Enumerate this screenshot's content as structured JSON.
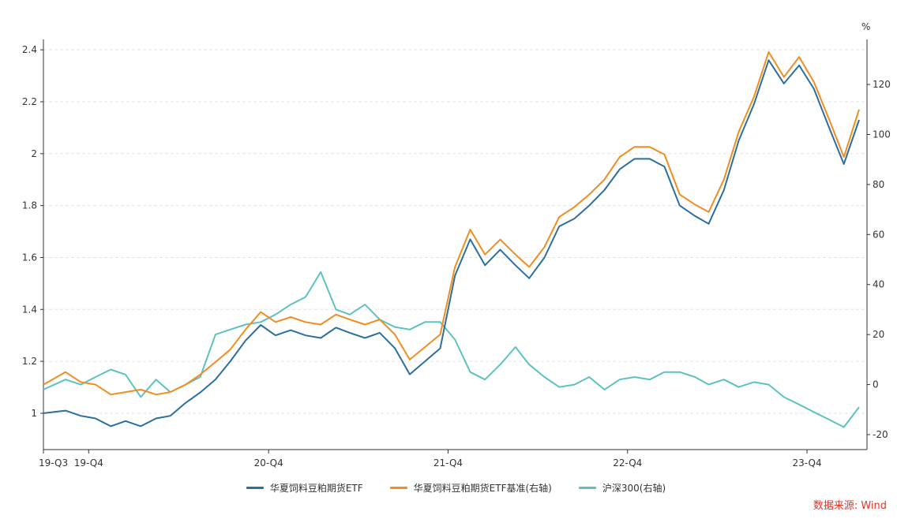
{
  "chart_data": {
    "type": "line",
    "x_ticks": [
      "19-Q3",
      "19-Q4",
      "20-Q4",
      "21-Q4",
      "22-Q4",
      "23-Q4"
    ],
    "y_left": {
      "ticks": [
        "1",
        "1.2",
        "1.4",
        "1.6",
        "1.8",
        "2",
        "2.2",
        "2.4"
      ],
      "range": [
        0.86,
        2.44
      ]
    },
    "y_right": {
      "unit": "%",
      "ticks": [
        "-20",
        "0",
        "20",
        "40",
        "60",
        "80",
        "100",
        "120"
      ],
      "range": [
        -26,
        138
      ]
    },
    "grid": "horizontal-dashed",
    "legend_position": "bottom-center",
    "series": [
      {
        "name": "华夏饲料豆粕期货ETF",
        "axis": "left",
        "color": "#2c6e9e",
        "x": [
          "2019-07",
          "2019-08",
          "2019-09",
          "2019-10",
          "2019-11",
          "2019-12",
          "2020-01",
          "2020-02",
          "2020-03",
          "2020-04",
          "2020-05",
          "2020-06",
          "2020-07",
          "2020-08",
          "2020-09",
          "2020-10",
          "2020-11",
          "2020-12",
          "2021-01",
          "2021-02",
          "2021-03",
          "2021-04",
          "2021-05",
          "2021-06",
          "2021-07",
          "2021-08",
          "2021-09",
          "2021-10",
          "2021-11",
          "2021-12",
          "2022-01",
          "2022-02",
          "2022-03",
          "2022-04",
          "2022-05",
          "2022-06",
          "2022-07",
          "2022-08",
          "2022-09",
          "2022-10",
          "2022-11",
          "2022-12",
          "2023-01",
          "2023-02",
          "2023-03",
          "2023-04",
          "2023-05",
          "2023-06",
          "2023-07",
          "2023-08",
          "2023-09",
          "2023-10",
          "2023-11",
          "2023-12",
          "2024-01"
        ],
        "values": [
          1.0,
          1.01,
          0.99,
          0.98,
          0.95,
          0.97,
          0.95,
          0.98,
          0.99,
          1.04,
          1.08,
          1.13,
          1.2,
          1.28,
          1.34,
          1.3,
          1.32,
          1.3,
          1.29,
          1.33,
          1.31,
          1.29,
          1.31,
          1.25,
          1.15,
          1.2,
          1.25,
          1.53,
          1.67,
          1.57,
          1.63,
          1.57,
          1.52,
          1.6,
          1.72,
          1.75,
          1.8,
          1.86,
          1.94,
          1.98,
          1.98,
          1.95,
          1.8,
          1.76,
          1.73,
          1.86,
          2.05,
          2.19,
          2.36,
          2.27,
          2.34,
          2.25,
          2.1,
          1.96,
          2.13
        ]
      },
      {
        "name": "华夏饲料豆粕期货ETF基准(右轴)",
        "axis": "right",
        "color": "#f28c1f",
        "x": [
          "2019-07",
          "2019-08",
          "2019-09",
          "2019-10",
          "2019-11",
          "2019-12",
          "2020-01",
          "2020-02",
          "2020-03",
          "2020-04",
          "2020-05",
          "2020-06",
          "2020-07",
          "2020-08",
          "2020-09",
          "2020-10",
          "2020-11",
          "2020-12",
          "2021-01",
          "2021-02",
          "2021-03",
          "2021-04",
          "2021-05",
          "2021-06",
          "2021-07",
          "2021-08",
          "2021-09",
          "2021-10",
          "2021-11",
          "2021-12",
          "2022-01",
          "2022-02",
          "2022-03",
          "2022-04",
          "2022-05",
          "2022-06",
          "2022-07",
          "2022-08",
          "2022-09",
          "2022-10",
          "2022-11",
          "2022-12",
          "2023-01",
          "2023-02",
          "2023-03",
          "2023-04",
          "2023-05",
          "2023-06",
          "2023-07",
          "2023-08",
          "2023-09",
          "2023-10",
          "2023-11",
          "2023-12",
          "2024-01"
        ],
        "values": [
          0,
          5,
          1,
          0,
          -4,
          -3,
          -2,
          -4,
          -3,
          0,
          4,
          9,
          14,
          22,
          29,
          25,
          27,
          25,
          24,
          28,
          26,
          24,
          26,
          20,
          10,
          15,
          20,
          47,
          62,
          52,
          58,
          52,
          47,
          55,
          67,
          71,
          76,
          82,
          91,
          95,
          95,
          92,
          76,
          72,
          69,
          82,
          101,
          115,
          133,
          123,
          131,
          121,
          106,
          91,
          110
        ]
      },
      {
        "name": "沪深300(右轴)",
        "axis": "right",
        "color": "#5bc2c0",
        "x": [
          "2019-07",
          "2019-08",
          "2019-09",
          "2019-10",
          "2019-11",
          "2019-12",
          "2020-01",
          "2020-02",
          "2020-03",
          "2020-04",
          "2020-05",
          "2020-06",
          "2020-07",
          "2020-08",
          "2020-09",
          "2020-10",
          "2020-11",
          "2020-12",
          "2021-01",
          "2021-02",
          "2021-03",
          "2021-04",
          "2021-05",
          "2021-06",
          "2021-07",
          "2021-08",
          "2021-09",
          "2021-10",
          "2021-11",
          "2021-12",
          "2022-01",
          "2022-02",
          "2022-03",
          "2022-04",
          "2022-05",
          "2022-06",
          "2022-07",
          "2022-08",
          "2022-09",
          "2022-10",
          "2022-11",
          "2022-12",
          "2023-01",
          "2023-02",
          "2023-03",
          "2023-04",
          "2023-05",
          "2023-06",
          "2023-07",
          "2023-08",
          "2023-09",
          "2023-10",
          "2023-11",
          "2023-12",
          "2024-01"
        ],
        "values": [
          -2,
          2,
          0,
          3,
          6,
          4,
          -5,
          2,
          -3,
          0,
          3,
          20,
          22,
          24,
          25,
          28,
          32,
          35,
          45,
          30,
          28,
          32,
          26,
          23,
          22,
          25,
          25,
          18,
          5,
          2,
          8,
          15,
          8,
          3,
          -1,
          0,
          3,
          -2,
          2,
          3,
          2,
          5,
          5,
          3,
          0,
          2,
          -1,
          1,
          0,
          -5,
          -8,
          -11,
          -14,
          -17,
          -9
        ]
      }
    ]
  },
  "source": "数据来源: Wind"
}
